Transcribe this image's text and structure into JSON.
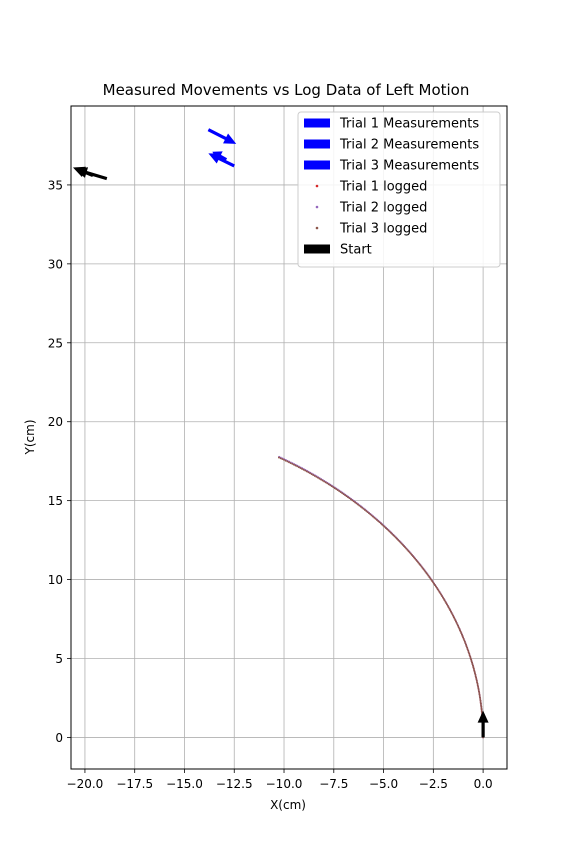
{
  "chart_data": {
    "type": "scatter",
    "title": "Measured Movements vs Log Data of Left Motion",
    "xlabel": "X(cm)",
    "ylabel": "Y(cm)",
    "xlim": [
      -20.7,
      1.2
    ],
    "ylim": [
      -2.0,
      40.0
    ],
    "xticks": [
      -20.0,
      -17.5,
      -15.0,
      -12.5,
      -10.0,
      -7.5,
      -5.0,
      -2.5,
      0.0
    ],
    "xtick_labels": [
      "−20.0",
      "−17.5",
      "−15.0",
      "−12.5",
      "−10.0",
      "−7.5",
      "−5.0",
      "−2.5",
      "0.0"
    ],
    "yticks": [
      0,
      5,
      10,
      15,
      20,
      25,
      30,
      35
    ],
    "ytick_labels": [
      "0",
      "5",
      "10",
      "15",
      "20",
      "25",
      "30",
      "35"
    ],
    "grid": true,
    "legend_position": "top-right",
    "legend": [
      {
        "label": "Trial 1 Measurements",
        "kind": "bar",
        "color": "#0000ff"
      },
      {
        "label": "Trial 2 Measurements",
        "kind": "bar",
        "color": "#0000ff"
      },
      {
        "label": "Trial 3 Measurements",
        "kind": "bar",
        "color": "#0000ff"
      },
      {
        "label": "Trial 1 logged",
        "kind": "dot",
        "color": "#d62728"
      },
      {
        "label": "Trial 2 logged",
        "kind": "dot",
        "color": "#9467bd"
      },
      {
        "label": "Trial 3 logged",
        "kind": "dot",
        "color": "#8c564b"
      },
      {
        "label": "Start",
        "kind": "bar",
        "color": "#000000"
      }
    ],
    "series": [
      {
        "name": "Trial 1 logged",
        "color": "#d62728",
        "arc_center": [
          -20.5,
          0.0
        ],
        "radius": 20.5,
        "start_angle_deg": 0,
        "end_angle_deg": 60.0,
        "points": 220
      },
      {
        "name": "Trial 2 logged",
        "color": "#9467bd",
        "arc_center": [
          -20.55,
          0.0
        ],
        "radius": 20.55,
        "start_angle_deg": 0,
        "end_angle_deg": 59.9,
        "points": 220
      },
      {
        "name": "Trial 3 logged",
        "color": "#8c564b",
        "arc_center": [
          -20.45,
          0.0
        ],
        "radius": 20.45,
        "start_angle_deg": 0,
        "end_angle_deg": 60.1,
        "points": 220
      }
    ],
    "measurement_arrows": [
      {
        "name": "Trial 1 Measurements",
        "color": "#0000ff",
        "x": -13.8,
        "y": 38.5,
        "dx": 1.4,
        "dy": -0.9
      },
      {
        "name": "Trial 2 Measurements",
        "color": "#0000ff",
        "x": -12.5,
        "y": 36.2,
        "dx": -1.3,
        "dy": 0.8
      },
      {
        "name": "Trial 3 Measurements",
        "color": "#0000ff",
        "x": -12.9,
        "y": 36.6,
        "dx": -0.7,
        "dy": 0.5
      }
    ],
    "start_arrows": [
      {
        "x": 0.0,
        "y": 0.0,
        "dx": 0.0,
        "dy": 1.7
      },
      {
        "x": -18.9,
        "y": 35.4,
        "dx": -1.6,
        "dy": 0.6
      },
      {
        "x": -19.6,
        "y": 35.6,
        "dx": -1.0,
        "dy": 0.5
      }
    ]
  }
}
